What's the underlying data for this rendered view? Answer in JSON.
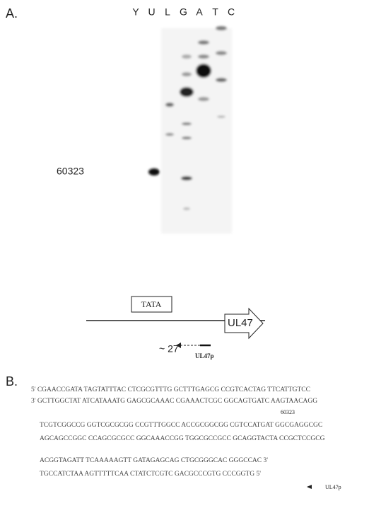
{
  "panel_a": {
    "label": "A.",
    "lanes": [
      "Y",
      "U",
      "L",
      "G",
      "A",
      "T",
      "C"
    ],
    "marker": "60323"
  },
  "diagram": {
    "promoter": "TATA",
    "gene": "UL47",
    "position": "~ 27",
    "primer": "UL47p"
  },
  "panel_b": {
    "label": "B.",
    "marker": "60323",
    "primer": "UL47p",
    "sequence": [
      "5' CGAACCGATA TAGTATTTAC CTCGCGTTTG GCTTTGAGCG CCGTCACTAG TTCATTGTCC",
      "3' GCTTGGCTAT ATCATAAATG GAGCGCAAAC CGAAACTCGC GGCAGTGATC AAGTAACAGG",
      "TCGTCGGCCG GGTCGCGCGG CCGTTTGGCC ACCGCGGCGG CGTCCATGAT GGCGAGGCGC",
      "AGCAGCCGGC CCAGCGCGCC GGCAAACCGG TGGCGCCGCC GCAGGTACTA CCGCTCCGCG",
      "ACGGTAGATT TCAAAAAGTT GATAGAGCAG CTGCGGGCAC GGGCCAC 3'",
      "TGCCATCTAA AGTTTTTCAA CTATCTCGTC GACGCCCGTG CCCGGTG 5'"
    ]
  }
}
